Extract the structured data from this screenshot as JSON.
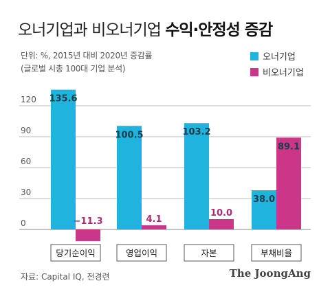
{
  "title": {
    "light": "오너기업과 비오너기업",
    "bold": "수익·안정성 증감"
  },
  "subtitle": {
    "line1": "단위: %, 2015년 대비 2020년 증감률",
    "line2": "(글로벌 시총 100대 기업 분석)"
  },
  "colors": {
    "owner": "#1fb3dd",
    "non_owner": "#cc3688",
    "axis_text": "#555555",
    "grid": "#bbbbbb"
  },
  "chart_data": {
    "type": "bar",
    "categories": [
      "당기순이익",
      "영업이익",
      "자본",
      "부채비율"
    ],
    "series": [
      {
        "name": "오너기업",
        "values": [
          135.6,
          100.5,
          103.2,
          38.0
        ],
        "labels": [
          "135.6",
          "100.5",
          "103.2",
          "38.0"
        ]
      },
      {
        "name": "비오너기업",
        "values": [
          -11.3,
          4.1,
          10.0,
          89.1
        ],
        "labels": [
          "−11.3",
          "4.1",
          "10.0",
          "89.1"
        ]
      }
    ],
    "yticks": [
      0,
      30,
      60,
      90,
      120
    ],
    "ylim": [
      -15,
      140
    ],
    "grid": true,
    "legend_position": "top-right"
  },
  "footer": {
    "source": "자료: Capital IQ, 전경련",
    "brand": "The JoongAng"
  }
}
